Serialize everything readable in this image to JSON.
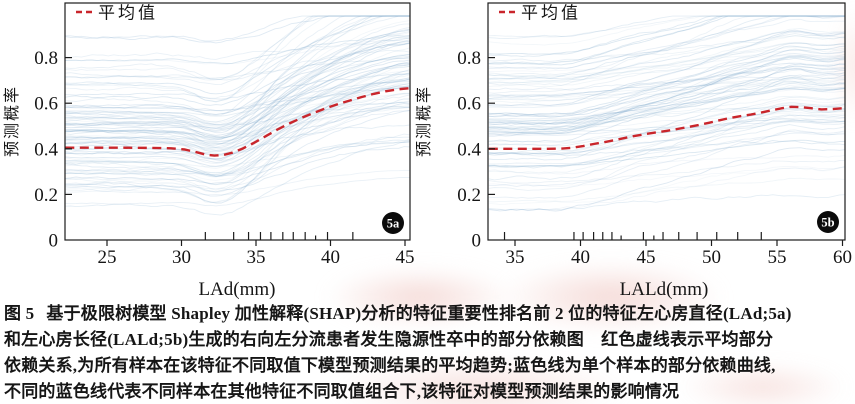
{
  "figure": {
    "caption": {
      "label": "图 5",
      "lines": [
        "基于极限树模型 Shapley 加性解释(SHAP)分析的特征重要性排名前 2 位的特征左心房直径(LAd;5a)",
        "和左心房长径(LALd;5b)生成的右向左分流患者发生隐源性卒中的部分依赖图　红色虚线表示平均部分",
        "依赖关系,为所有样本在该特征不同取值下模型预测结果的平均趋势;蓝色线为单个样本的部分依赖曲线,",
        "不同的蓝色线代表不同样本在其他特征不同取值组合下,该特征对模型预测结果的影响情况"
      ]
    }
  },
  "colors": {
    "mean_line": "#c9252b",
    "ice_line": "#7ea9cc",
    "axis": "#1c1c1c",
    "text": "#161616",
    "badge_bg": "#0b0b0b",
    "badge_text": "#ffffff",
    "watermark_pink": "#f3d3cf"
  },
  "chart_data": [
    {
      "type": "line",
      "panel_label": "5a",
      "legend": "平均值",
      "xlabel": "LAd(mm)",
      "ylabel": "预测概率",
      "xlim": [
        22.2,
        45.3
      ],
      "ylim": [
        0,
        1.04
      ],
      "xticks": [
        25,
        30,
        35,
        40,
        45
      ],
      "yticks": [
        0,
        0.2,
        0.4,
        0.6,
        0.8
      ],
      "grid": false,
      "legend_position": "top-left",
      "mean_series": {
        "name": "平均值",
        "x": [
          22.2,
          24.0,
          26.0,
          28.0,
          29.3,
          30.2,
          30.9,
          31.6,
          32.2,
          32.8,
          33.4,
          34.1,
          34.9,
          35.7,
          36.5,
          37.3,
          38.1,
          38.9,
          39.7,
          40.5,
          41.3,
          42.1,
          42.9,
          43.7,
          44.5,
          45.3
        ],
        "y": [
          0.405,
          0.405,
          0.405,
          0.404,
          0.402,
          0.397,
          0.387,
          0.375,
          0.37,
          0.373,
          0.383,
          0.401,
          0.427,
          0.457,
          0.487,
          0.513,
          0.537,
          0.558,
          0.578,
          0.596,
          0.612,
          0.627,
          0.641,
          0.652,
          0.661,
          0.666
        ]
      },
      "ice_lines": {
        "description": "individual sample partial-dependence curves (procedural)",
        "count": 95,
        "seed": 101
      },
      "rug_x": [
        31.6,
        33.5,
        34.5,
        35.3,
        36.0,
        36.8,
        37.5,
        38.3,
        39.8,
        41.5
      ],
      "rug_short_x": [
        39.0
      ]
    },
    {
      "type": "line",
      "panel_label": "5b",
      "legend": "平均值",
      "xlabel": "LALd(mm)",
      "ylabel": "预测概率",
      "xlim": [
        33.0,
        60.2
      ],
      "ylim": [
        0,
        1.04
      ],
      "xticks": [
        35,
        40,
        45,
        50,
        55,
        60
      ],
      "yticks": [
        0,
        0.2,
        0.4,
        0.6,
        0.8
      ],
      "grid": false,
      "legend_position": "top-left",
      "mean_series": {
        "name": "平均值",
        "x": [
          33.0,
          34.5,
          36.0,
          37.5,
          38.6,
          39.4,
          40.2,
          41.0,
          41.8,
          42.6,
          43.4,
          44.2,
          45.0,
          45.8,
          46.6,
          47.4,
          48.2,
          49.0,
          49.8,
          50.6,
          51.4,
          52.2,
          53.0,
          53.8,
          54.6,
          55.4,
          56.1,
          56.8,
          57.6,
          58.4,
          59.2,
          60.2
        ],
        "y": [
          0.4,
          0.4,
          0.4,
          0.4,
          0.401,
          0.405,
          0.412,
          0.421,
          0.429,
          0.438,
          0.448,
          0.457,
          0.465,
          0.472,
          0.479,
          0.487,
          0.495,
          0.504,
          0.514,
          0.525,
          0.535,
          0.543,
          0.55,
          0.559,
          0.569,
          0.578,
          0.584,
          0.583,
          0.578,
          0.573,
          0.574,
          0.579
        ]
      },
      "ice_lines": {
        "description": "individual sample partial-dependence curves (procedural)",
        "count": 95,
        "seed": 202
      },
      "rug_x": [
        34.2,
        39.5,
        40.2,
        41.0,
        41.7,
        42.4,
        44.8,
        46.3,
        47.5,
        48.9,
        50.4,
        52.0,
        53.8
      ],
      "rug_short_x": [
        43.1,
        45.6
      ]
    }
  ]
}
